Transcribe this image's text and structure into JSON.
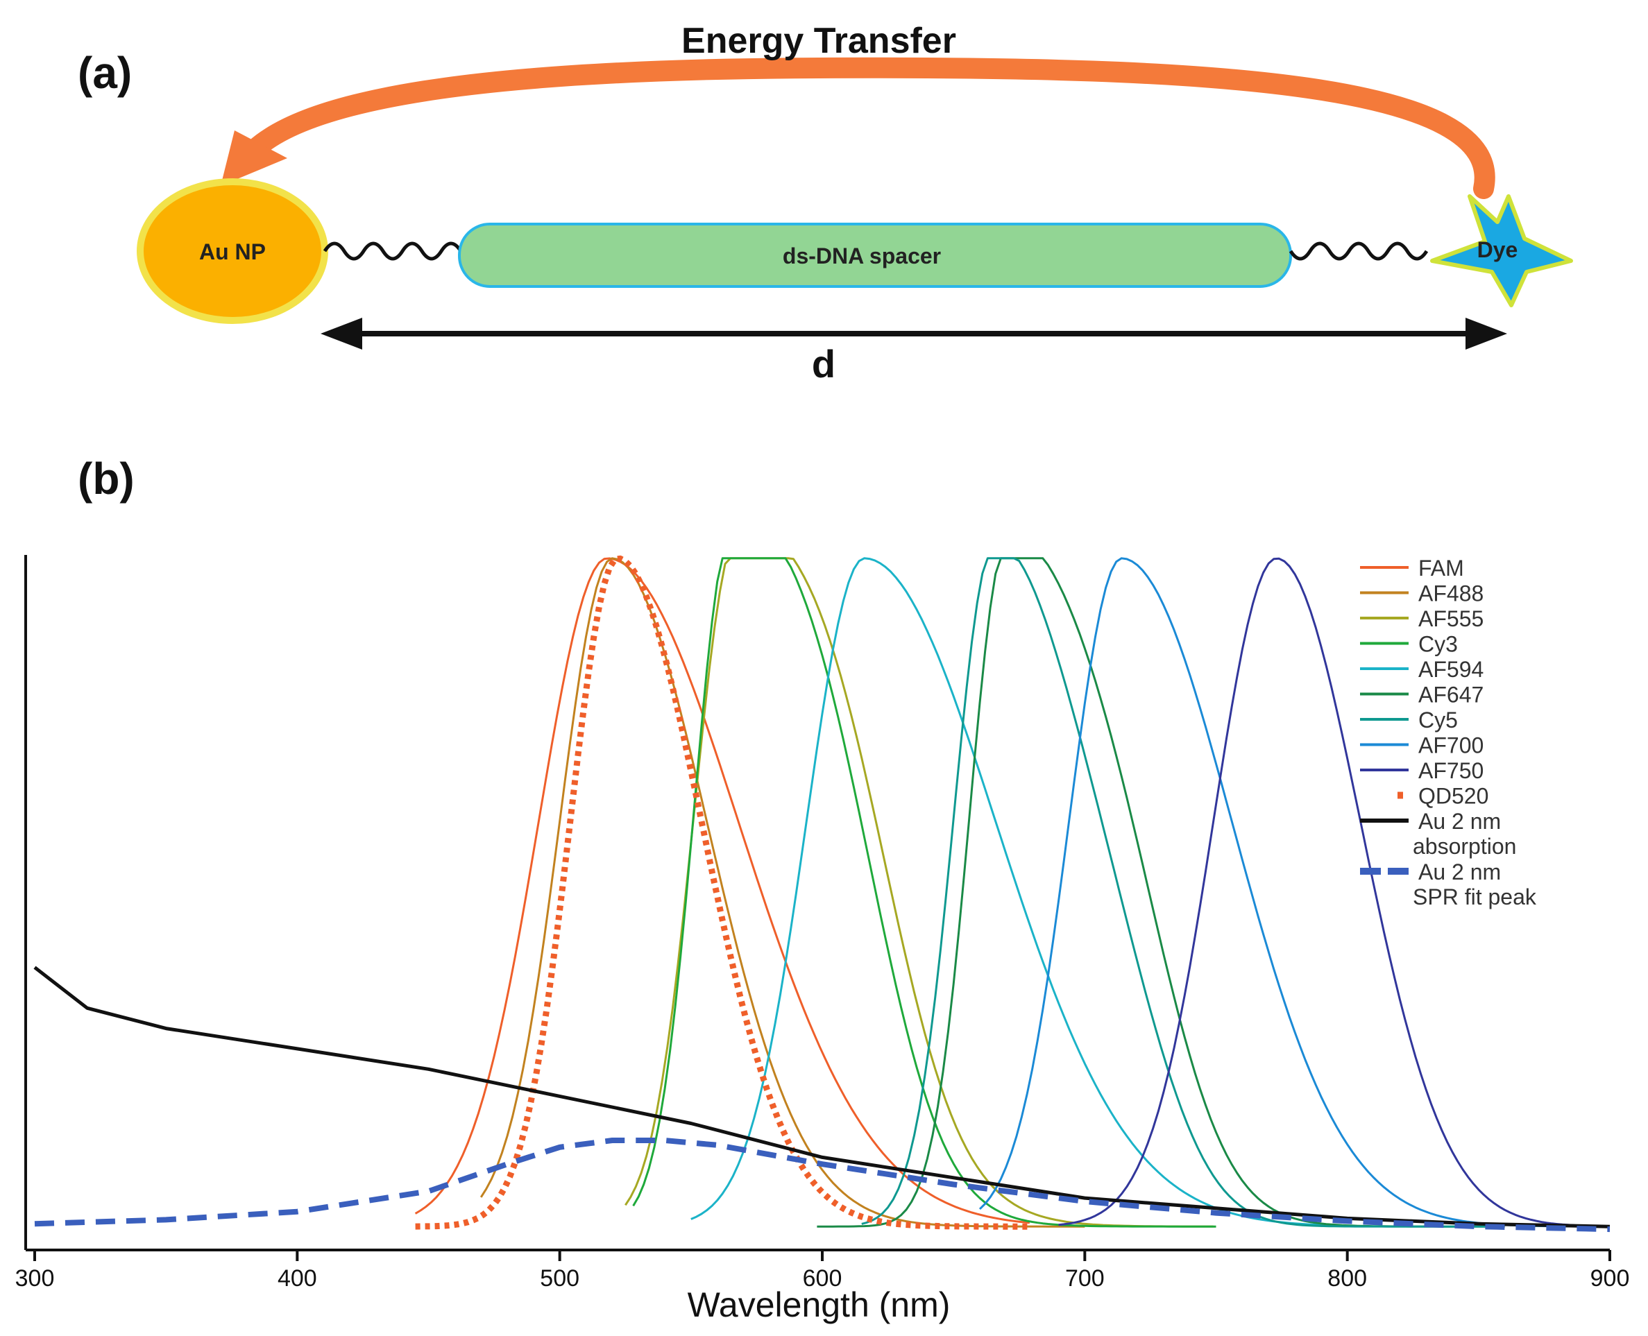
{
  "panel_a": {
    "label": "(a)",
    "arrow_label": "Energy Transfer",
    "np_label": "Au NP",
    "spacer_label": "ds-DNA spacer",
    "dye_label": "Dye",
    "distance_label": "d",
    "colors": {
      "arrow": "#f47a3a",
      "np_fill": "#fbb000",
      "np_ring": "#f2e24a",
      "spacer_fill": "#92d594",
      "spacer_edge": "#2ab6e8",
      "dye_fill": "#1aa8e2",
      "dye_edge": "#cfe23a"
    }
  },
  "panel_b": {
    "label": "(b)"
  },
  "chart_data": {
    "type": "line",
    "xlabel": "Wavelength (nm)",
    "ylabel": "",
    "xlim": [
      300,
      900
    ],
    "ylim": [
      0,
      1
    ],
    "x_ticks": [
      "300",
      "400",
      "500",
      "600",
      "700",
      "800",
      "900"
    ],
    "grid": false,
    "legend_position": "top-right",
    "series": [
      {
        "name": "FAM",
        "color": "#ef5f2a",
        "style": "solid",
        "peak": 518,
        "range": [
          445,
          680
        ],
        "shoulder_width": 26,
        "tail_width": 50,
        "shoulder": null
      },
      {
        "name": "AF488",
        "color": "#c2821f",
        "style": "solid",
        "peak": 520,
        "range": [
          470,
          700
        ],
        "shoulder_width": 20,
        "tail_width": 36,
        "shoulder": null
      },
      {
        "name": "AF555",
        "color": "#a6a823",
        "style": "solid",
        "peak": 567,
        "range": [
          525,
          750
        ],
        "shoulder_width": 16,
        "tail_width": 40,
        "shoulder": {
          "x": 610,
          "h": 0.22
        }
      },
      {
        "name": "Cy3",
        "color": "#1fa93b",
        "style": "solid",
        "peak": 565,
        "range": [
          528,
          750
        ],
        "shoulder_width": 14,
        "tail_width": 36,
        "shoulder": {
          "x": 606,
          "h": 0.24
        }
      },
      {
        "name": "AF594",
        "color": "#1bb3c8",
        "style": "solid",
        "peak": 616,
        "range": [
          550,
          800
        ],
        "shoulder_width": 22,
        "tail_width": 50,
        "shoulder": null
      },
      {
        "name": "AF647",
        "color": "#1a8a47",
        "style": "solid",
        "peak": 670,
        "range": [
          598,
          860
        ],
        "shoulder_width": 14,
        "tail_width": 36,
        "shoulder": {
          "x": 715,
          "h": 0.2
        }
      },
      {
        "name": "Cy5",
        "color": "#0f9990",
        "style": "solid",
        "peak": 665,
        "range": [
          615,
          860
        ],
        "shoulder_width": 15,
        "tail_width": 32,
        "shoulder": {
          "x": 712,
          "h": 0.18
        }
      },
      {
        "name": "AF700",
        "color": "#1b8ad6",
        "style": "solid",
        "peak": 714,
        "range": [
          660,
          900
        ],
        "shoulder_width": 20,
        "tail_width": 42,
        "shoulder": null
      },
      {
        "name": "AF750",
        "color": "#31369b",
        "style": "solid",
        "peak": 773,
        "range": [
          690,
          900
        ],
        "shoulder_width": 24,
        "tail_width": 32,
        "shoulder": null
      },
      {
        "name": "QD520",
        "color": "#ef5f2a",
        "style": "dotted",
        "peak": 522,
        "range": [
          445,
          680
        ],
        "shoulder_width": 18,
        "tail_width": 32,
        "shoulder": null
      },
      {
        "name": "Au 2 nm\nabsorption",
        "color": "#111111",
        "style": "solid",
        "x": [
          300,
          320,
          350,
          400,
          450,
          500,
          550,
          600,
          650,
          700,
          750,
          800,
          850,
          900
        ],
        "y": [
          0.39,
          0.33,
          0.3,
          0.27,
          0.24,
          0.2,
          0.16,
          0.11,
          0.08,
          0.05,
          0.035,
          0.02,
          0.012,
          0.008
        ]
      },
      {
        "name": "Au 2 nm\nSPR fit peak",
        "color": "#3a5fbd",
        "style": "dashed",
        "x": [
          300,
          350,
          400,
          450,
          480,
          500,
          520,
          540,
          560,
          600,
          650,
          700,
          750,
          800,
          850,
          900
        ],
        "y": [
          0.012,
          0.018,
          0.03,
          0.06,
          0.1,
          0.125,
          0.135,
          0.135,
          0.128,
          0.1,
          0.07,
          0.045,
          0.028,
          0.016,
          0.008,
          0.004
        ]
      }
    ]
  }
}
